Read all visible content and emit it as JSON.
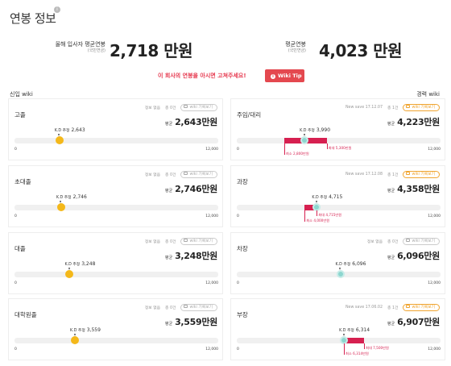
{
  "page": {
    "title": "연봉 정보",
    "info_icon": "info-icon",
    "info_glyph": "i"
  },
  "summary": {
    "new_label": "올해 입사자 평균연봉",
    "new_sub": "(국민연금)",
    "new_value": "2,718 만원",
    "avg_label": "평균연봉",
    "avg_sub": "(국민연금)",
    "avg_value": "4,023 만원"
  },
  "cta": {
    "text": "이 회사의 연봉을 아시면 고쳐주세요!",
    "button_label": "Wiki Tip",
    "button_glyph": "i"
  },
  "columns": {
    "left_title": "신입 wiki",
    "right_title": "경력 wiki"
  },
  "labels": {
    "avg": "평균",
    "min": "0",
    "max": "12,000",
    "kd": "K.D 추정",
    "record_btn": "wiki 기록보기"
  },
  "left_cards": [
    {
      "name": "고졸",
      "meta1": "정보 없음",
      "meta2": "총 0건",
      "avg": "2,643만원",
      "kd": "2,643",
      "marker": 0.2203
    },
    {
      "name": "초대졸",
      "meta1": "정보 없음",
      "meta2": "총 0건",
      "avg": "2,746만원",
      "kd": "2,746",
      "marker": 0.2288
    },
    {
      "name": "대졸",
      "meta1": "정보 없음",
      "meta2": "총 0건",
      "avg": "3,248만원",
      "kd": "3,248",
      "marker": 0.2707
    },
    {
      "name": "대학원졸",
      "meta1": "정보 없음",
      "meta2": "총 0건",
      "avg": "3,559만원",
      "kd": "3,559",
      "marker": 0.2966
    }
  ],
  "right_cards": [
    {
      "name": "주임/대리",
      "meta1": "New save 17.12.07",
      "meta2": "총 1건",
      "avg": "4,223만원",
      "kd": "3,990",
      "marker": 0.3325,
      "range": [
        0.2333,
        0.4417
      ],
      "rlow": "최소 2,800만원",
      "rhigh": "최대 5,300만원",
      "active": true
    },
    {
      "name": "과장",
      "meta1": "New save 17.12.08",
      "meta2": "총 1건",
      "avg": "4,358만원",
      "kd": "4,715",
      "marker": 0.3929,
      "range": [
        0.3333,
        0.3929
      ],
      "rlow": "최소 4,000만원",
      "rhigh": "최대 4,715만원",
      "active": true
    },
    {
      "name": "차장",
      "meta1": "정보 없음",
      "meta2": "총 0건",
      "avg": "6,096만원",
      "kd": "6,096",
      "marker": 0.508,
      "active": false
    },
    {
      "name": "부장",
      "meta1": "New save 17.06.02",
      "meta2": "총 1건",
      "avg": "6,907만원",
      "kd": "6,314",
      "marker": 0.5262,
      "range": [
        0.5262,
        0.625
      ],
      "rlow": "최소 6,314만원",
      "rhigh": "최대 7,500만원",
      "active": true
    }
  ]
}
